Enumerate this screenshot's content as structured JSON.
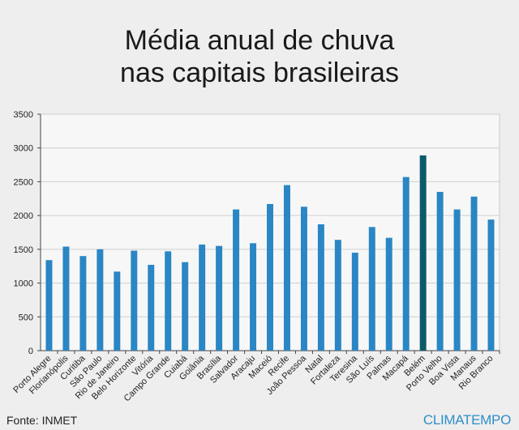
{
  "title_line1": "Média anual de chuva",
  "title_line2": "nas capitais brasileiras",
  "source": "Fonte: INMET",
  "brand": "CLIMATEMPO",
  "colors": {
    "bar": "#2a86c4",
    "highlight": "#0c5a68",
    "plot_bg": "#f7f7f7",
    "axis": "#444444"
  },
  "chart_data": {
    "type": "bar",
    "title": "Média anual de chuva nas capitais brasileiras",
    "xlabel": "",
    "ylabel": "",
    "ylim": [
      0,
      3500
    ],
    "yticks": [
      0,
      500,
      1000,
      1500,
      2000,
      2500,
      3000,
      3500
    ],
    "grid": true,
    "highlight": "Belém",
    "categories": [
      "Porto Alegre",
      "Florianópolis",
      "Curitiba",
      "São Paulo",
      "Rio de Janeiro",
      "Belo Horizonte",
      "Vitória",
      "Campo Grande",
      "Cuiabá",
      "Goiânia",
      "Brasília",
      "Salvador",
      "Aracaju",
      "Maceió",
      "Recife",
      "João Pessoa",
      "Natal",
      "Fortaleza",
      "Teresina",
      "São Luís",
      "Palmas",
      "Macapá",
      "Belém",
      "Porto Velho",
      "Boa Vista",
      "Manaus",
      "Rio Branco"
    ],
    "values": [
      1340,
      1540,
      1400,
      1500,
      1170,
      1480,
      1270,
      1470,
      1310,
      1570,
      1550,
      2090,
      1590,
      2170,
      2450,
      2130,
      1870,
      1640,
      1450,
      1830,
      1670,
      2570,
      2890,
      2350,
      2090,
      2280,
      1940
    ]
  }
}
